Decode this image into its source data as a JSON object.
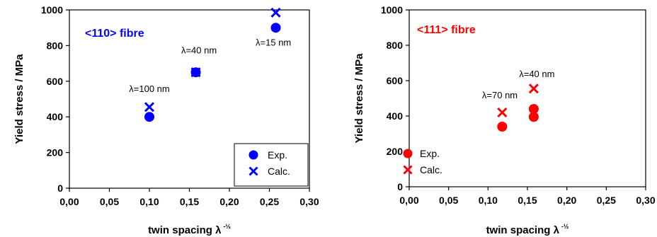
{
  "chart_data": [
    {
      "type": "scatter",
      "title": "<110> fibre",
      "xlabel": "twin spacing λ",
      "xlabel_sup": "-½",
      "ylabel": "Yield stress / MPa",
      "xlim": [
        0,
        0.3
      ],
      "ylim": [
        0,
        1000
      ],
      "xticks": [
        "0,00",
        "0,05",
        "0,10",
        "0,15",
        "0,20",
        "0,25",
        "0,30"
      ],
      "yticks": [
        "0",
        "200",
        "400",
        "600",
        "800",
        "1000"
      ],
      "grid": false,
      "legend_position": "bottom-right",
      "legend_boxed": true,
      "color": "#0000ff",
      "series": [
        {
          "name": "Exp.",
          "marker": "circle",
          "x": [
            0.1,
            0.158,
            0.258
          ],
          "y": [
            400,
            650,
            900
          ]
        },
        {
          "name": "Calc.",
          "marker": "cross",
          "x": [
            0.1,
            0.158,
            0.258
          ],
          "y": [
            455,
            650,
            985
          ]
        }
      ],
      "annotations": [
        {
          "text": "λ=100 nm",
          "x": 0.1,
          "y": 540
        },
        {
          "text": "λ=40 nm",
          "x": 0.162,
          "y": 755
        },
        {
          "text": "λ=15 nm",
          "x": 0.255,
          "y": 800
        }
      ]
    },
    {
      "type": "scatter",
      "title": "<111> fibre",
      "xlabel": "twin spacing λ",
      "xlabel_sup": "-½",
      "ylabel": "Yield stress / MPa",
      "xlim": [
        0,
        0.3
      ],
      "ylim": [
        0,
        1000
      ],
      "xticks": [
        "0,00",
        "0,05",
        "0,10",
        "0,15",
        "0,20",
        "0,25",
        "0,30"
      ],
      "yticks": [
        "0",
        "200",
        "400",
        "600",
        "800",
        "1000"
      ],
      "grid": false,
      "legend_position": "bottom-left",
      "legend_boxed": false,
      "color": "#ff0000",
      "series": [
        {
          "name": "Exp.",
          "marker": "circle",
          "x": [
            0.118,
            0.158,
            0.158
          ],
          "y": [
            340,
            440,
            395
          ]
        },
        {
          "name": "Calc.",
          "marker": "cross",
          "x": [
            0.118,
            0.158
          ],
          "y": [
            420,
            555
          ]
        }
      ],
      "annotations": [
        {
          "text": "λ=70 nm",
          "x": 0.115,
          "y": 500
        },
        {
          "text": "λ=40 nm",
          "x": 0.162,
          "y": 620
        }
      ]
    }
  ]
}
